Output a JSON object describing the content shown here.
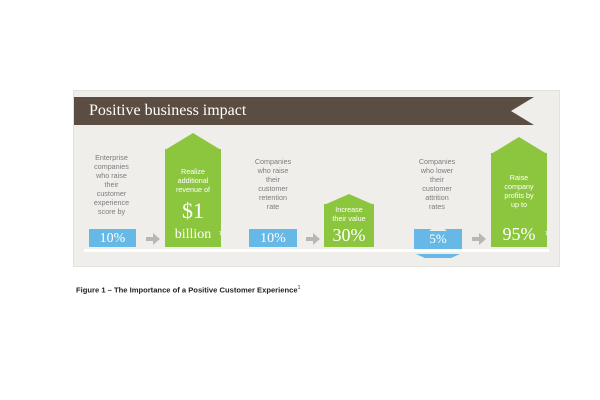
{
  "banner": {
    "title": "Positive business impact"
  },
  "steps": {
    "enterprise": {
      "description": "Enterprise\ncompanies\nwho raise\ntheir\ncustomer\nexperience\nscore by",
      "value": "10%"
    },
    "revenue": {
      "description": "Realize\nadditional\nrevenue of",
      "value_big": "$1",
      "value_small": "billion"
    },
    "retention": {
      "description": "Companies\nwho raise\ntheir\ncustomer\nretention\nrate",
      "value": "10%"
    },
    "value_increase": {
      "description": "Increase\ntheir value",
      "value": "30%"
    },
    "attrition": {
      "description": "Companies\nwho lower\ntheir\ncustomer\nattrition\nrates",
      "value": "5%"
    },
    "profits": {
      "description": "Raise\ncompany\nprofits by\nup to",
      "value": "95%"
    }
  },
  "footnote_marks": {
    "revenue": "1",
    "profits": "1"
  },
  "caption": {
    "text": "Figure 1 – The Importance of a Positive Customer Experience",
    "superscript": "1"
  },
  "colors": {
    "banner": "#5b4d41",
    "blue": "#66b8e6",
    "green": "#8cc63f",
    "arrow": "#b7b7b7",
    "panel": "#efeeea"
  },
  "icons": {
    "arrow": "right-arrow-icon"
  }
}
